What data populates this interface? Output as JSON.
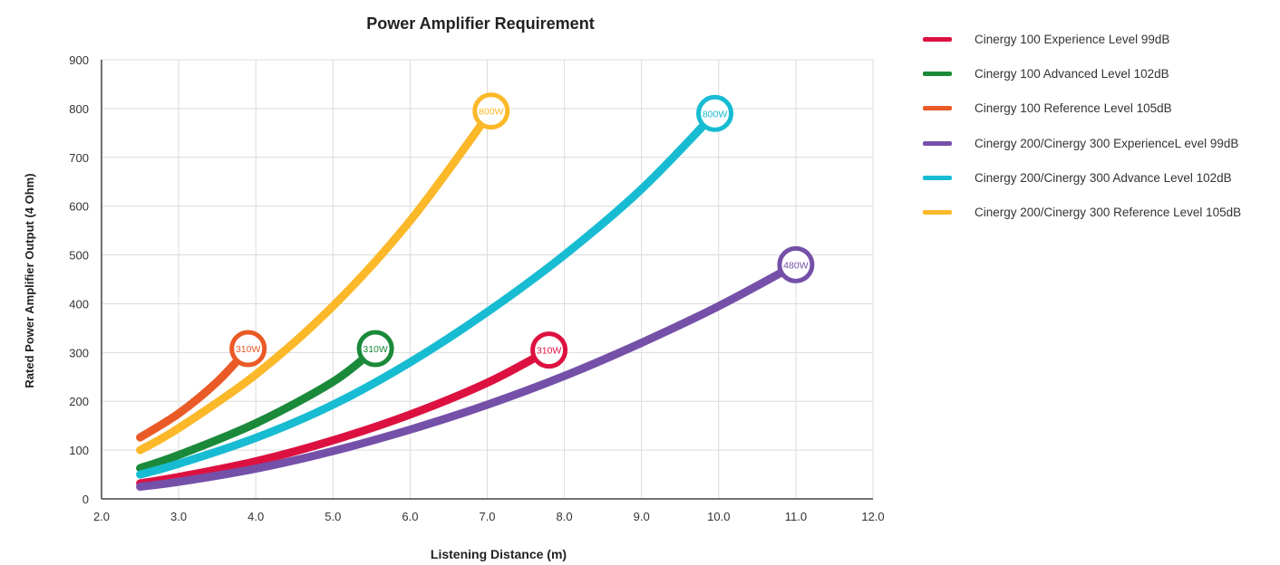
{
  "chart_data": {
    "type": "line",
    "title": "Power Amplifier Requirement",
    "xlabel": "Listening Distance (m)",
    "ylabel": "Rated Power Amplifier Output (4 Ohm)",
    "xlim": [
      2.0,
      12.0
    ],
    "ylim": [
      0,
      900
    ],
    "xticks": [
      "2.0",
      "3.0",
      "4.0",
      "5.0",
      "6.0",
      "7.0",
      "8.0",
      "9.0",
      "10.0",
      "11.0",
      "12.0"
    ],
    "yticks": [
      "0",
      "100",
      "200",
      "300",
      "400",
      "500",
      "600",
      "700",
      "800",
      "900"
    ],
    "grid": true,
    "legend_position": "right",
    "series": [
      {
        "name": "Cinergy 100 Experience Level 99dB",
        "color": "#dd1140",
        "x": [
          2.5,
          3.0,
          4.0,
          5.0,
          6.0,
          7.0,
          7.8
        ],
        "y": [
          32,
          45,
          77,
          120,
          173,
          238,
          305
        ],
        "end_label": "310W"
      },
      {
        "name": "Cinergy 100 Advanced Level 102dB",
        "color": "#1a8a3a",
        "x": [
          2.5,
          3.0,
          4.0,
          5.0,
          5.55
        ],
        "y": [
          63,
          90,
          155,
          240,
          308
        ],
        "end_label": "310W"
      },
      {
        "name": "Cinergy 100 Reference Level 105dB",
        "color": "#ea5a26",
        "x": [
          2.5,
          3.0,
          3.5,
          3.9
        ],
        "y": [
          126,
          175,
          240,
          308
        ],
        "end_label": "310W"
      },
      {
        "name": "Cinergy 200/Cinergy 300 ExperienceL evel 99dB",
        "color": "#7550a8",
        "x": [
          2.5,
          3.0,
          4.0,
          5.0,
          6.0,
          7.0,
          8.0,
          9.0,
          10.0,
          11.0
        ],
        "y": [
          25,
          35,
          62,
          98,
          142,
          193,
          252,
          320,
          395,
          480
        ],
        "end_label": "480W"
      },
      {
        "name": "Cinergy 200/Cinergy 300 Advance Level 102dB",
        "color": "#18bcd2",
        "x": [
          2.5,
          3.0,
          4.0,
          5.0,
          6.0,
          7.0,
          8.0,
          9.0,
          9.95
        ],
        "y": [
          50,
          72,
          125,
          193,
          280,
          383,
          500,
          635,
          790
        ],
        "end_label": "800W"
      },
      {
        "name": "Cinergy 200/Cinergy 300 Reference Level 105dB",
        "color": "#fbb829",
        "x": [
          2.5,
          3.0,
          4.0,
          5.0,
          6.0,
          7.05
        ],
        "y": [
          100,
          145,
          255,
          395,
          570,
          795
        ],
        "end_label": "800W"
      }
    ]
  }
}
